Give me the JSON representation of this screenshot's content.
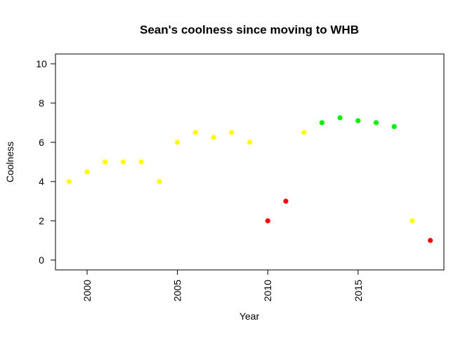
{
  "chart_data": {
    "type": "scatter",
    "title": "Sean's coolness since moving to WHB",
    "xlabel": "Year",
    "ylabel": "Coolness",
    "xlim": [
      1998.25,
      2019.75
    ],
    "ylim": [
      -0.5,
      10.5
    ],
    "x_ticks": [
      2000,
      2005,
      2010,
      2015
    ],
    "y_ticks": [
      0,
      2,
      4,
      6,
      8,
      10
    ],
    "grid": false,
    "colors": {
      "yellow": "#ffff00",
      "red": "#ff0000",
      "green": "#00ee00"
    },
    "points": [
      {
        "x": 1999,
        "y": 4,
        "color": "yellow"
      },
      {
        "x": 2000,
        "y": 4.5,
        "color": "yellow"
      },
      {
        "x": 2001,
        "y": 5,
        "color": "yellow"
      },
      {
        "x": 2002,
        "y": 5,
        "color": "yellow"
      },
      {
        "x": 2003,
        "y": 5,
        "color": "yellow"
      },
      {
        "x": 2004,
        "y": 4,
        "color": "yellow"
      },
      {
        "x": 2005,
        "y": 6,
        "color": "yellow"
      },
      {
        "x": 2006,
        "y": 6.5,
        "color": "yellow"
      },
      {
        "x": 2007,
        "y": 6.25,
        "color": "yellow"
      },
      {
        "x": 2008,
        "y": 6.5,
        "color": "yellow"
      },
      {
        "x": 2009,
        "y": 6,
        "color": "yellow"
      },
      {
        "x": 2010,
        "y": 2,
        "color": "red"
      },
      {
        "x": 2011,
        "y": 3,
        "color": "red"
      },
      {
        "x": 2012,
        "y": 6.5,
        "color": "yellow"
      },
      {
        "x": 2013,
        "y": 7,
        "color": "green"
      },
      {
        "x": 2014,
        "y": 7.25,
        "color": "green"
      },
      {
        "x": 2015,
        "y": 7.1,
        "color": "green"
      },
      {
        "x": 2016,
        "y": 7,
        "color": "green"
      },
      {
        "x": 2017,
        "y": 6.8,
        "color": "green"
      },
      {
        "x": 2018,
        "y": 2,
        "color": "yellow"
      },
      {
        "x": 2019,
        "y": 1,
        "color": "red"
      }
    ]
  }
}
